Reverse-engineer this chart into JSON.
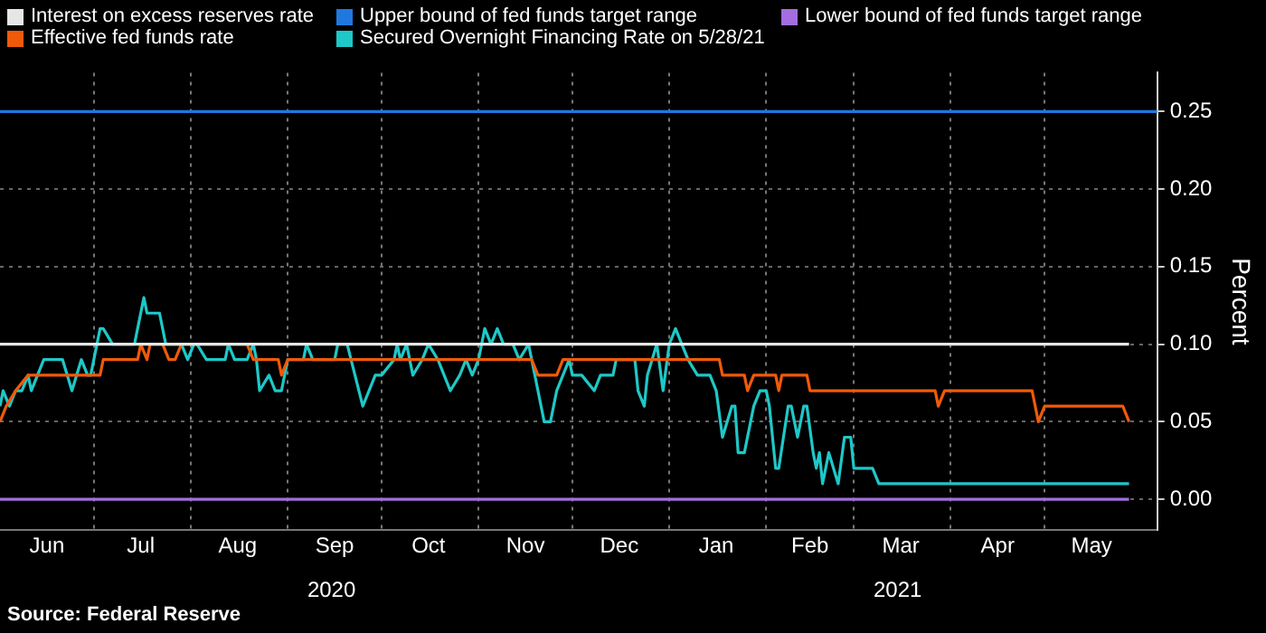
{
  "chart_data": {
    "type": "line",
    "ylabel": "Percent",
    "annotations": [
      "Source: Federal Reserve"
    ],
    "x2lim": [
      "2020-06-01",
      "2021-06-06"
    ],
    "x2ticks": [
      {
        "value": "2020-09-15",
        "label": "2020"
      },
      {
        "value": "2021-03-15",
        "label": "2021"
      }
    ],
    "xlim": [
      "2020-06-01",
      "2021-06-06"
    ],
    "xticks": [
      {
        "value": "2020-07-01",
        "label": null
      },
      {
        "value": "2020-08-01",
        "label": null
      },
      {
        "value": "2020-09-01",
        "label": null
      },
      {
        "value": "2020-10-01",
        "label": null
      },
      {
        "value": "2020-11-01",
        "label": null
      },
      {
        "value": "2020-12-01",
        "label": null
      },
      {
        "value": "2021-01-01",
        "label": null
      },
      {
        "value": "2021-02-01",
        "label": null
      },
      {
        "value": "2021-03-01",
        "label": null
      },
      {
        "value": "2021-04-01",
        "label": null
      },
      {
        "value": "2021-05-01",
        "label": null
      },
      {
        "value": "2020-06-16",
        "label": "Jun"
      },
      {
        "value": "2020-07-16",
        "label": "Jul"
      },
      {
        "value": "2020-08-16",
        "label": "Aug"
      },
      {
        "value": "2020-09-16",
        "label": "Sep"
      },
      {
        "value": "2020-10-16",
        "label": "Oct"
      },
      {
        "value": "2020-11-16",
        "label": "Nov"
      },
      {
        "value": "2020-12-16",
        "label": "Dec"
      },
      {
        "value": "2021-01-16",
        "label": "Jan"
      },
      {
        "value": "2021-02-15",
        "label": "Feb"
      },
      {
        "value": "2021-03-16",
        "label": "Mar"
      },
      {
        "value": "2021-04-16",
        "label": "Apr"
      },
      {
        "value": "2021-05-16",
        "label": "May"
      }
    ],
    "ylim": [
      -0.02,
      0.275
    ],
    "yticks": [
      {
        "value": 0,
        "label": "0.00"
      },
      {
        "value": 0.05,
        "label": "0.05"
      },
      {
        "value": 0.1,
        "label": "0.10"
      },
      {
        "value": 0.15,
        "label": "0.15"
      },
      {
        "value": 0.2,
        "label": "0.20"
      },
      {
        "value": 0.25,
        "label": "0.25"
      }
    ],
    "grid": true,
    "legend": "top left",
    "marker": "none",
    "line_style": "solid",
    "series": [
      {
        "name": "Interest on excess reserves rate",
        "color": "#e6e6e6",
        "x": [
          "2020-06-01",
          "2021-05-28"
        ],
        "values": [
          0.1,
          0.1
        ]
      },
      {
        "name": "Upper bound of fed funds target range",
        "color": "#1f78e0",
        "x": [
          "2020-06-01",
          "2021-06-06"
        ],
        "values": [
          0.25,
          0.25
        ]
      },
      {
        "name": "Lower bound of fed funds target range",
        "color": "#a46ee0",
        "x": [
          "2020-06-01",
          "2021-05-28"
        ],
        "values": [
          0,
          0
        ]
      },
      {
        "name": "Effective fed funds rate",
        "color": "#f05a0a",
        "x": [
          "2020-06-01",
          "2020-06-03",
          "2020-06-06",
          "2020-06-10",
          "2020-07-03",
          "2020-07-04",
          "2020-07-15",
          "2020-07-16",
          "2020-07-18",
          "2020-07-19",
          "2020-07-23",
          "2020-07-25",
          "2020-07-27",
          "2020-07-29",
          "2020-08-19",
          "2020-08-21",
          "2020-08-29",
          "2020-08-30",
          "2020-09-01",
          "2020-11-18",
          "2020-11-20",
          "2020-11-26",
          "2020-11-28",
          "2021-01-17",
          "2021-01-18",
          "2021-01-25",
          "2021-01-26",
          "2021-01-28",
          "2021-02-04",
          "2021-02-05",
          "2021-02-06",
          "2021-02-14",
          "2021-02-15",
          "2021-03-27",
          "2021-03-28",
          "2021-03-30",
          "2021-04-27",
          "2021-04-29",
          "2021-05-01",
          "2021-05-26",
          "2021-05-28"
        ],
        "values": [
          0.05,
          0.06,
          0.07,
          0.08,
          0.08,
          0.09,
          0.09,
          0.1,
          0.09,
          0.1,
          0.1,
          0.09,
          0.09,
          0.1,
          0.1,
          0.09,
          0.09,
          0.08,
          0.09,
          0.09,
          0.08,
          0.08,
          0.09,
          0.09,
          0.08,
          0.08,
          0.07,
          0.08,
          0.08,
          0.07,
          0.08,
          0.08,
          0.07,
          0.07,
          0.06,
          0.07,
          0.07,
          0.05,
          0.06,
          0.06,
          0.05
        ]
      },
      {
        "name": "Secured Overnight Financing Rate on 5/28/21",
        "color": "#1ec8c8",
        "x": [
          "2020-06-01",
          "2020-06-02",
          "2020-06-04",
          "2020-06-06",
          "2020-06-08",
          "2020-06-10",
          "2020-06-11",
          "2020-06-13",
          "2020-06-15",
          "2020-06-21",
          "2020-06-24",
          "2020-06-27",
          "2020-06-29",
          "2020-06-30",
          "2020-07-03",
          "2020-07-04",
          "2020-07-07",
          "2020-07-14",
          "2020-07-15",
          "2020-07-17",
          "2020-07-18",
          "2020-07-22",
          "2020-07-24",
          "2020-07-29",
          "2020-07-31",
          "2020-08-02",
          "2020-08-03",
          "2020-08-06",
          "2020-08-12",
          "2020-08-13",
          "2020-08-15",
          "2020-08-19",
          "2020-08-21",
          "2020-08-22",
          "2020-08-23",
          "2020-08-26",
          "2020-08-28",
          "2020-08-30",
          "2020-09-01",
          "2020-09-06",
          "2020-09-07",
          "2020-09-09",
          "2020-09-16",
          "2020-09-17",
          "2020-09-20",
          "2020-09-25",
          "2020-09-29",
          "2020-10-01",
          "2020-10-05",
          "2020-10-06",
          "2020-10-07",
          "2020-10-09",
          "2020-10-11",
          "2020-10-14",
          "2020-10-16",
          "2020-10-19",
          "2020-10-23",
          "2020-10-26",
          "2020-10-28",
          "2020-10-30",
          "2020-11-01",
          "2020-11-03",
          "2020-11-05",
          "2020-11-07",
          "2020-11-09",
          "2020-11-12",
          "2020-11-14",
          "2020-11-17",
          "2020-11-20",
          "2020-11-22",
          "2020-11-24",
          "2020-11-26",
          "2020-11-28",
          "2020-11-30",
          "2020-12-01",
          "2020-12-04",
          "2020-12-08",
          "2020-12-10",
          "2020-12-14",
          "2020-12-15",
          "2020-12-21",
          "2020-12-22",
          "2020-12-24",
          "2020-12-25",
          "2020-12-28",
          "2020-12-30",
          "2021-01-01",
          "2021-01-03",
          "2021-01-05",
          "2021-01-07",
          "2021-01-10",
          "2021-01-14",
          "2021-01-16",
          "2021-01-18",
          "2021-01-21",
          "2021-01-22",
          "2021-01-23",
          "2021-01-25",
          "2021-01-28",
          "2021-01-30",
          "2021-02-01",
          "2021-02-02",
          "2021-02-04",
          "2021-02-05",
          "2021-02-08",
          "2021-02-09",
          "2021-02-11",
          "2021-02-13",
          "2021-02-14",
          "2021-02-16",
          "2021-02-17",
          "2021-02-18",
          "2021-02-19",
          "2021-02-21",
          "2021-02-24",
          "2021-02-26",
          "2021-02-28",
          "2021-03-01",
          "2021-03-07",
          "2021-03-09",
          "2021-05-28"
        ],
        "values": [
          0.06,
          0.07,
          0.06,
          0.07,
          0.07,
          0.08,
          0.07,
          0.08,
          0.09,
          0.09,
          0.07,
          0.09,
          0.08,
          0.08,
          0.11,
          0.11,
          0.1,
          0.1,
          0.11,
          0.13,
          0.12,
          0.12,
          0.1,
          0.1,
          0.09,
          0.1,
          0.1,
          0.09,
          0.09,
          0.1,
          0.09,
          0.09,
          0.1,
          0.09,
          0.07,
          0.08,
          0.07,
          0.07,
          0.09,
          0.09,
          0.1,
          0.09,
          0.09,
          0.1,
          0.1,
          0.06,
          0.08,
          0.08,
          0.09,
          0.1,
          0.09,
          0.1,
          0.08,
          0.09,
          0.1,
          0.09,
          0.07,
          0.08,
          0.09,
          0.08,
          0.09,
          0.11,
          0.1,
          0.11,
          0.1,
          0.1,
          0.09,
          0.1,
          0.07,
          0.05,
          0.05,
          0.07,
          0.08,
          0.09,
          0.08,
          0.08,
          0.07,
          0.08,
          0.08,
          0.09,
          0.09,
          0.07,
          0.06,
          0.08,
          0.1,
          0.07,
          0.1,
          0.11,
          0.1,
          0.09,
          0.08,
          0.08,
          0.07,
          0.04,
          0.06,
          0.06,
          0.03,
          0.03,
          0.06,
          0.07,
          0.07,
          0.06,
          0.02,
          0.02,
          0.06,
          0.06,
          0.04,
          0.06,
          0.06,
          0.03,
          0.02,
          0.03,
          0.01,
          0.03,
          0.01,
          0.04,
          0.04,
          0.02,
          0.02,
          0.01,
          0.01
        ]
      }
    ]
  }
}
